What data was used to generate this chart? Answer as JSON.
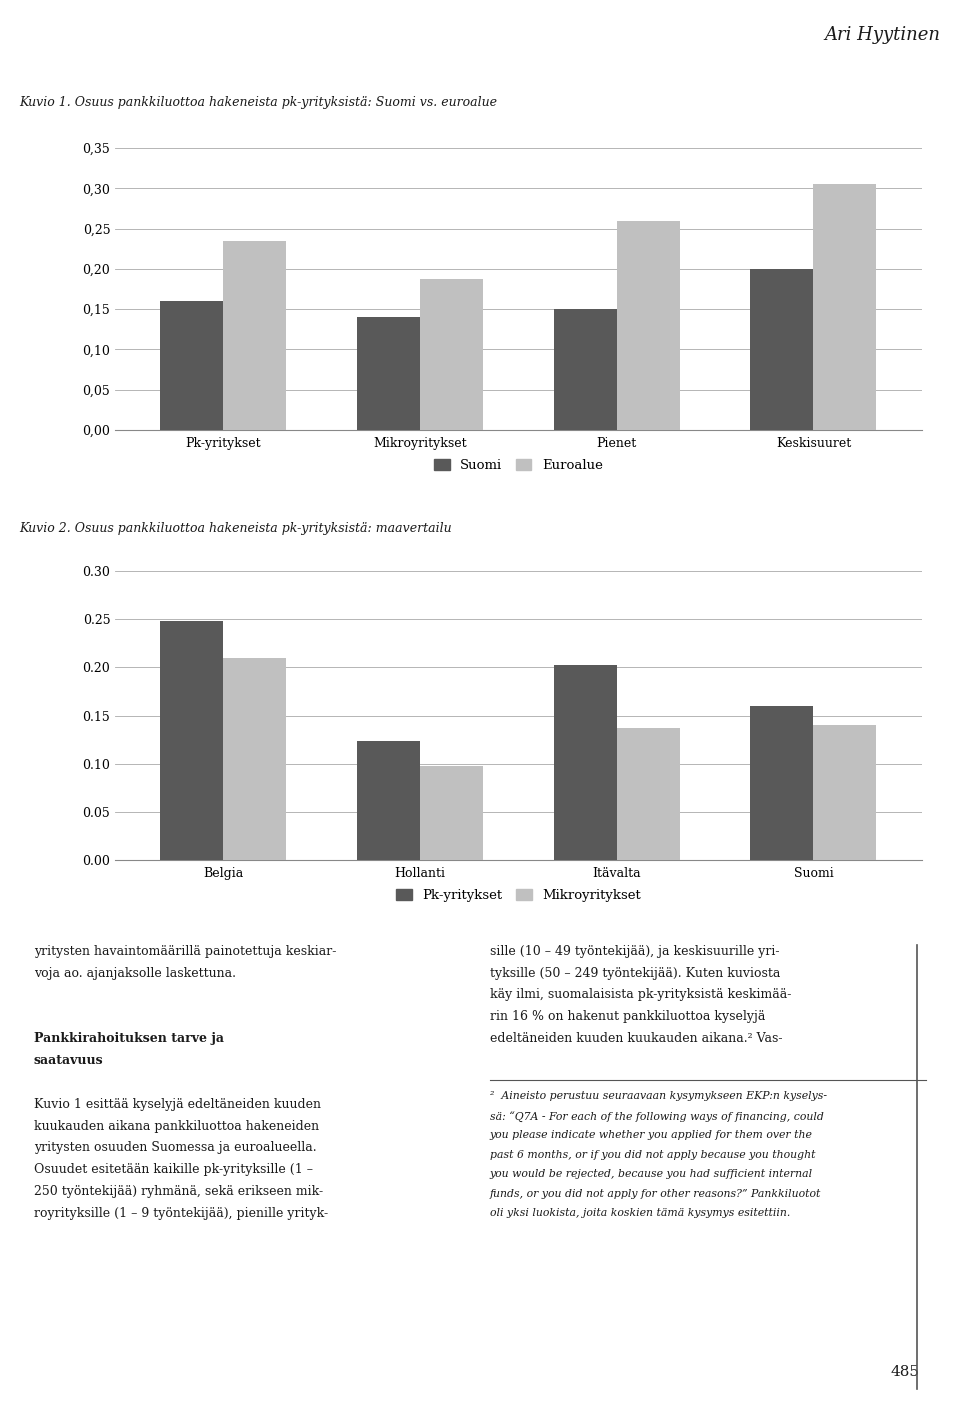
{
  "title_author": "Ari Hyytinen",
  "chart1_title": "Kuvio 1. Osuus pankkiluottoa hakeneista pk-yrityksistä: Suomi vs. euroalue",
  "chart1_categories": [
    "Pk-yritykset",
    "Mikroyritykset",
    "Pienet",
    "Keskisuuret"
  ],
  "chart1_suomi": [
    0.16,
    0.14,
    0.15,
    0.2
  ],
  "chart1_euroalue": [
    0.235,
    0.188,
    0.26,
    0.305
  ],
  "chart1_ylim": [
    0.0,
    0.35
  ],
  "chart1_yticks": [
    0.0,
    0.05,
    0.1,
    0.15,
    0.2,
    0.25,
    0.3,
    0.35
  ],
  "chart1_ytick_labels": [
    "0,00",
    "0,05",
    "0,10",
    "0,15",
    "0,20",
    "0,25",
    "0,30",
    "0,35"
  ],
  "chart1_legend": [
    "Suomi",
    "Euroalue"
  ],
  "chart2_title": "Kuvio 2. Osuus pankkiluottoa hakeneista pk-yrityksistä: maavertailu",
  "chart2_categories": [
    "Belgia",
    "Hollanti",
    "Itävalta",
    "Suomi"
  ],
  "chart2_pk": [
    0.248,
    0.124,
    0.203,
    0.16
  ],
  "chart2_mikro": [
    0.21,
    0.098,
    0.137,
    0.14
  ],
  "chart2_ylim": [
    0.0,
    0.3
  ],
  "chart2_yticks": [
    0.0,
    0.05,
    0.1,
    0.15,
    0.2,
    0.25,
    0.3
  ],
  "chart2_ytick_labels": [
    "0.00",
    "0.05",
    "0.10",
    "0.15",
    "0.20",
    "0.25",
    "0.30"
  ],
  "chart2_legend": [
    "Pk-yritykset",
    "Mikroyritykset"
  ],
  "color_dark": "#595959",
  "color_light": "#c0c0c0",
  "bar_width": 0.32,
  "page_number": "485",
  "background_color": "#ffffff",
  "font_color": "#1a1a1a"
}
